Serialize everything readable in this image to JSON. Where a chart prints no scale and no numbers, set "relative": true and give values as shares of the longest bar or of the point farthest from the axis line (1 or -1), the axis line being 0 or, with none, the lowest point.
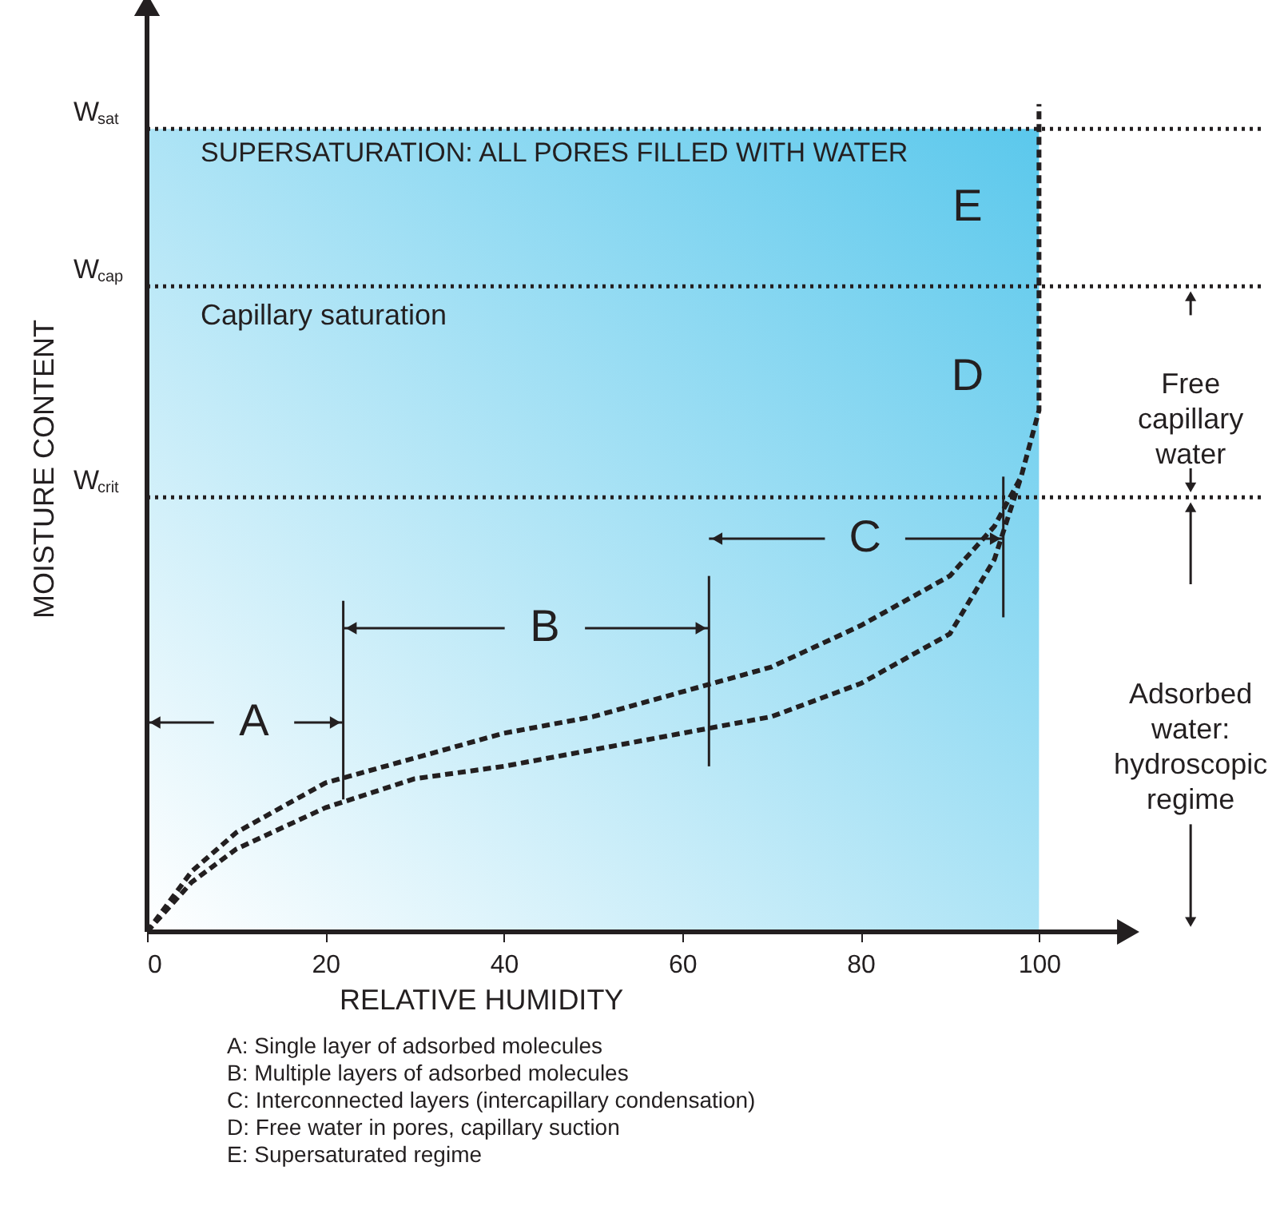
{
  "chart_data": {
    "type": "line",
    "relative": true,
    "xlabel": "RELATIVE HUMIDITY",
    "ylabel": "MOISTURE CONTENT",
    "xlim": [
      0,
      110
    ],
    "xticks": [
      0,
      20,
      40,
      60,
      80,
      100
    ],
    "line_style": "dashed",
    "marker": "none",
    "grid": false,
    "series": [
      {
        "color": "#231f20",
        "x": [
          0,
          5,
          10,
          20,
          30,
          40,
          50,
          60,
          70,
          80,
          90,
          95,
          98,
          100,
          100
        ],
        "values": [
          0,
          0.073,
          0.12,
          0.18,
          0.21,
          0.24,
          0.26,
          0.29,
          0.32,
          0.37,
          0.43,
          0.49,
          0.55,
          0.63,
          1.0
        ]
      },
      {
        "color": "#231f20",
        "x": [
          0,
          5,
          10,
          20,
          30,
          40,
          50,
          60,
          70,
          80,
          90,
          95,
          98
        ],
        "values": [
          0,
          0.06,
          0.1,
          0.15,
          0.185,
          0.2,
          0.22,
          0.24,
          0.26,
          0.3,
          0.36,
          0.45,
          0.55
        ]
      }
    ],
    "ref_lines": [
      {
        "axis": "y",
        "value": 0.97,
        "label": "W$_{sat}$",
        "line_style": "dotted",
        "color": "#231f20"
      },
      {
        "axis": "y",
        "value": 0.78,
        "label": "W$_{cap}$",
        "line_style": "dotted",
        "color": "#231f20"
      },
      {
        "axis": "y",
        "value": 0.525,
        "label": "W$_{crit}$",
        "line_style": "dotted",
        "color": "#231f20"
      }
    ],
    "bands": [
      {
        "axis": "x",
        "from": 0,
        "to": 100,
        "color": "#5bc8ec"
      }
    ],
    "annotations": [
      "SUPERSATURATION: ALL PORES FILLED WITH WATER",
      "Capillary saturation",
      "E",
      "D",
      "C",
      "B",
      "A",
      "Free capillary water",
      "Adsorbed water: hydroscopic regime",
      "A: Single layer of adsorbed molecules",
      "B: Multiple layers of adsorbed molecules",
      "C: Interconnected layers (intercapillary condensation)",
      "D: Free water in pores, capillary suction",
      "E: Supersaturated regime"
    ]
  }
}
